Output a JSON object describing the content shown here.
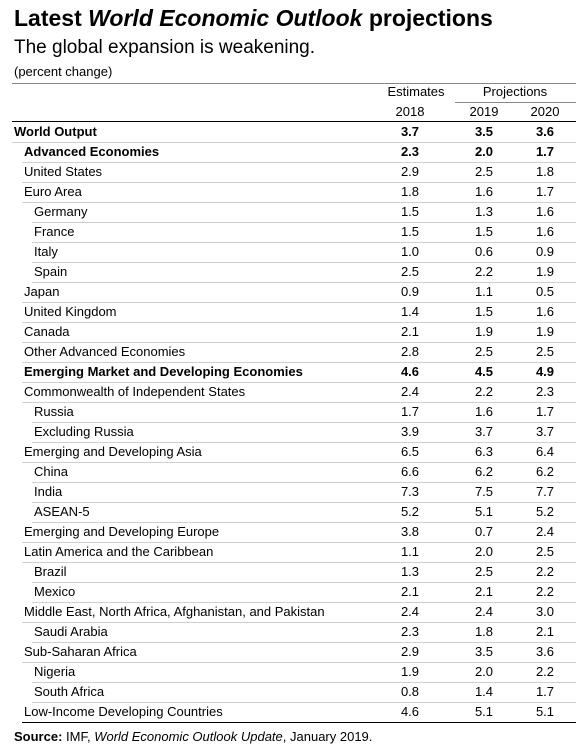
{
  "header": {
    "title_start": "Latest ",
    "title_italic": "World Economic Outlook",
    "title_end": " projections",
    "subtitle": "The global expansion is weakening.",
    "unit": "(percent change)"
  },
  "table": {
    "group_headers": [
      "Estimates",
      "Projections"
    ],
    "years": [
      "2018",
      "2019",
      "2020"
    ],
    "rows": [
      {
        "label": "World Output",
        "level": 0,
        "bold": true,
        "values": [
          "3.7",
          "3.5",
          "3.6"
        ]
      },
      {
        "label": "Advanced Economies",
        "level": 1,
        "bold": true,
        "values": [
          "2.3",
          "2.0",
          "1.7"
        ]
      },
      {
        "label": "United States",
        "level": 1,
        "bold": false,
        "values": [
          "2.9",
          "2.5",
          "1.8"
        ]
      },
      {
        "label": "Euro Area",
        "level": 1,
        "bold": false,
        "values": [
          "1.8",
          "1.6",
          "1.7"
        ]
      },
      {
        "label": "Germany",
        "level": 2,
        "bold": false,
        "values": [
          "1.5",
          "1.3",
          "1.6"
        ]
      },
      {
        "label": "France",
        "level": 2,
        "bold": false,
        "values": [
          "1.5",
          "1.5",
          "1.6"
        ]
      },
      {
        "label": "Italy",
        "level": 2,
        "bold": false,
        "values": [
          "1.0",
          "0.6",
          "0.9"
        ]
      },
      {
        "label": "Spain",
        "level": 2,
        "bold": false,
        "values": [
          "2.5",
          "2.2",
          "1.9"
        ]
      },
      {
        "label": "Japan",
        "level": 1,
        "bold": false,
        "values": [
          "0.9",
          "1.1",
          "0.5"
        ]
      },
      {
        "label": "United Kingdom",
        "level": 1,
        "bold": false,
        "values": [
          "1.4",
          "1.5",
          "1.6"
        ]
      },
      {
        "label": "Canada",
        "level": 1,
        "bold": false,
        "values": [
          "2.1",
          "1.9",
          "1.9"
        ]
      },
      {
        "label": "Other Advanced Economies",
        "level": 1,
        "bold": false,
        "values": [
          "2.8",
          "2.5",
          "2.5"
        ]
      },
      {
        "label": "Emerging Market and Developing Economies",
        "level": 1,
        "bold": true,
        "values": [
          "4.6",
          "4.5",
          "4.9"
        ]
      },
      {
        "label": "Commonwealth of Independent States",
        "level": 1,
        "bold": false,
        "values": [
          "2.4",
          "2.2",
          "2.3"
        ]
      },
      {
        "label": "Russia",
        "level": 2,
        "bold": false,
        "values": [
          "1.7",
          "1.6",
          "1.7"
        ]
      },
      {
        "label": "Excluding Russia",
        "level": 2,
        "bold": false,
        "values": [
          "3.9",
          "3.7",
          "3.7"
        ]
      },
      {
        "label": "Emerging and Developing Asia",
        "level": 1,
        "bold": false,
        "values": [
          "6.5",
          "6.3",
          "6.4"
        ]
      },
      {
        "label": "China",
        "level": 2,
        "bold": false,
        "values": [
          "6.6",
          "6.2",
          "6.2"
        ]
      },
      {
        "label": "India",
        "level": 2,
        "bold": false,
        "values": [
          "7.3",
          "7.5",
          "7.7"
        ]
      },
      {
        "label": "ASEAN-5",
        "level": 2,
        "bold": false,
        "values": [
          "5.2",
          "5.1",
          "5.2"
        ]
      },
      {
        "label": "Emerging and Developing Europe",
        "level": 1,
        "bold": false,
        "values": [
          "3.8",
          "0.7",
          "2.4"
        ]
      },
      {
        "label": "Latin America and the Caribbean",
        "level": 1,
        "bold": false,
        "values": [
          "1.1",
          "2.0",
          "2.5"
        ]
      },
      {
        "label": "Brazil",
        "level": 2,
        "bold": false,
        "values": [
          "1.3",
          "2.5",
          "2.2"
        ]
      },
      {
        "label": "Mexico",
        "level": 2,
        "bold": false,
        "values": [
          "2.1",
          "2.1",
          "2.2"
        ]
      },
      {
        "label": "Middle East, North Africa, Afghanistan, and Pakistan",
        "level": 1,
        "bold": false,
        "values": [
          "2.4",
          "2.4",
          "3.0"
        ]
      },
      {
        "label": "Saudi Arabia",
        "level": 2,
        "bold": false,
        "values": [
          "2.3",
          "1.8",
          "2.1"
        ]
      },
      {
        "label": "Sub-Saharan Africa",
        "level": 1,
        "bold": false,
        "values": [
          "2.9",
          "3.5",
          "3.6"
        ]
      },
      {
        "label": "Nigeria",
        "level": 2,
        "bold": false,
        "values": [
          "1.9",
          "2.0",
          "2.2"
        ]
      },
      {
        "label": "South Africa",
        "level": 2,
        "bold": false,
        "values": [
          "0.8",
          "1.4",
          "1.7"
        ]
      },
      {
        "label": "Low-Income Developing Countries",
        "level": 1,
        "bold": false,
        "values": [
          "4.6",
          "5.1",
          "5.1"
        ]
      }
    ]
  },
  "source": {
    "label": "Source:",
    "text_start": " IMF, ",
    "italic": "World Economic Outlook Update",
    "text_end": ", January 2019."
  }
}
